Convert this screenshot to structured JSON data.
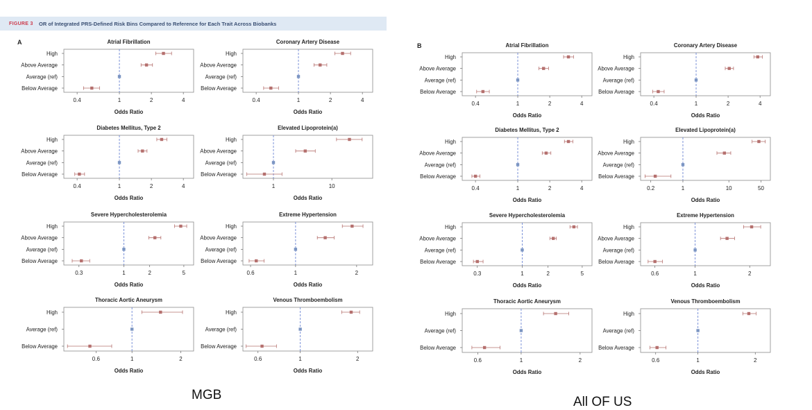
{
  "figure": {
    "label": "FIGURE 3",
    "title": "OR of Integrated PRS-Defined Risk Bins Compared to Reference for Each Trait Across Biobanks",
    "accent_color": "#cc3b4c",
    "banner_color": "#dfe9f4"
  },
  "panels": {
    "A": {
      "letter": "A",
      "cohort": "MGB"
    },
    "B": {
      "letter": "B",
      "cohort": "All OF US"
    }
  },
  "style": {
    "point_color": "#b5706e",
    "ref_point_color": "#7b95c2",
    "ref_line_color": "#6d86d4"
  },
  "chart_data": [
    {
      "id": "A1",
      "panel": "A",
      "type": "scatter",
      "title": "Atrial Fibrillation",
      "xlabel": "Odds Ratio",
      "xscale": "log",
      "xlim": [
        0.3,
        5
      ],
      "xticks": [
        0.4,
        1,
        2,
        4
      ],
      "xticklabels": [
        "0.4",
        "1",
        "2",
        "4"
      ],
      "categories": [
        "High",
        "Above Average",
        "Average (ref)",
        "Below Average"
      ],
      "values": [
        2.6,
        1.8,
        1.0,
        0.55
      ],
      "ci_low": [
        2.2,
        1.6,
        1.0,
        0.46
      ],
      "ci_high": [
        3.1,
        2.05,
        1.0,
        0.65
      ]
    },
    {
      "id": "A2",
      "panel": "A",
      "type": "scatter",
      "title": "Coronary Artery Disease",
      "xlabel": "Odds Ratio",
      "xscale": "log",
      "xlim": [
        0.3,
        5
      ],
      "xticks": [
        0.4,
        1,
        2,
        4
      ],
      "xticklabels": [
        "0.4",
        "1",
        "2",
        "4"
      ],
      "categories": [
        "High",
        "Above Average",
        "Average (ref)",
        "Below Average"
      ],
      "values": [
        2.6,
        1.6,
        1.0,
        0.55
      ],
      "ci_low": [
        2.2,
        1.4,
        1.0,
        0.47
      ],
      "ci_high": [
        3.1,
        1.85,
        1.0,
        0.65
      ]
    },
    {
      "id": "A3",
      "panel": "A",
      "type": "scatter",
      "title": "Diabetes Mellitus, Type 2",
      "xlabel": "Odds Ratio",
      "xscale": "log",
      "xlim": [
        0.3,
        5
      ],
      "xticks": [
        0.4,
        1,
        2,
        4
      ],
      "xticklabels": [
        "0.4",
        "1",
        "2",
        "4"
      ],
      "categories": [
        "High",
        "Above Average",
        "Average (ref)",
        "Below Average"
      ],
      "values": [
        2.5,
        1.65,
        1.0,
        0.42
      ],
      "ci_low": [
        2.25,
        1.5,
        1.0,
        0.38
      ],
      "ci_high": [
        2.8,
        1.82,
        1.0,
        0.47
      ]
    },
    {
      "id": "A4",
      "panel": "A",
      "type": "scatter",
      "title": "Elevated Lipoprotein(a)",
      "xlabel": "Odds Ratio",
      "xscale": "log",
      "xlim": [
        0.3,
        50
      ],
      "xticks": [
        1,
        10
      ],
      "xticklabels": [
        "1",
        "10"
      ],
      "categories": [
        "High",
        "Above Average",
        "Average (ref)",
        "Below Average"
      ],
      "values": [
        20,
        3.5,
        1.0,
        0.7
      ],
      "ci_low": [
        12,
        2.4,
        1.0,
        0.35
      ],
      "ci_high": [
        33,
        5.2,
        1.0,
        1.4
      ]
    },
    {
      "id": "A5",
      "panel": "A",
      "type": "scatter",
      "title": "Severe Hypercholesterolemia",
      "xlabel": "Odds Ratio",
      "xscale": "log",
      "xlim": [
        0.2,
        6.5
      ],
      "xticks": [
        0.3,
        1,
        2,
        5
      ],
      "xticklabels": [
        "0.3",
        "1",
        "2",
        "5"
      ],
      "categories": [
        "High",
        "Above Average",
        "Average (ref)",
        "Below Average"
      ],
      "values": [
        4.6,
        2.3,
        1.0,
        0.32
      ],
      "ci_low": [
        3.9,
        1.95,
        1.0,
        0.25
      ],
      "ci_high": [
        5.4,
        2.7,
        1.0,
        0.4
      ]
    },
    {
      "id": "A6",
      "panel": "A",
      "type": "scatter",
      "title": "Extreme Hypertension",
      "xlabel": "Odds Ratio",
      "xscale": "log",
      "xlim": [
        0.55,
        2.4
      ],
      "xticks": [
        0.6,
        1,
        2
      ],
      "xticklabels": [
        "0.6",
        "1",
        "2"
      ],
      "categories": [
        "High",
        "Above Average",
        "Average (ref)",
        "Below Average"
      ],
      "values": [
        1.9,
        1.4,
        1.0,
        0.64
      ],
      "ci_low": [
        1.7,
        1.28,
        1.0,
        0.59
      ],
      "ci_high": [
        2.15,
        1.55,
        1.0,
        0.7
      ]
    },
    {
      "id": "A7",
      "panel": "A",
      "type": "scatter",
      "title": "Thoracic Aortic Aneurysm",
      "xlabel": "Odds Ratio",
      "xscale": "log",
      "xlim": [
        0.38,
        2.4
      ],
      "xticks": [
        0.6,
        1,
        2
      ],
      "xticklabels": [
        "0.6",
        "1",
        "2"
      ],
      "categories": [
        "High",
        "Average (ref)",
        "Below Average"
      ],
      "values": [
        1.5,
        1.0,
        0.55
      ],
      "ci_low": [
        1.15,
        1.0,
        0.4
      ],
      "ci_high": [
        2.05,
        1.0,
        0.75
      ]
    },
    {
      "id": "A8",
      "panel": "A",
      "type": "scatter",
      "title": "Venous Thromboembolism",
      "xlabel": "Odds Ratio",
      "xscale": "log",
      "xlim": [
        0.5,
        2.4
      ],
      "xticks": [
        0.6,
        1,
        2
      ],
      "xticklabels": [
        "0.6",
        "1",
        "2"
      ],
      "categories": [
        "High",
        "Average (ref)",
        "Below Average"
      ],
      "values": [
        1.85,
        1.0,
        0.63
      ],
      "ci_low": [
        1.65,
        1.0,
        0.52
      ],
      "ci_high": [
        2.05,
        1.0,
        0.75
      ]
    },
    {
      "id": "B1",
      "panel": "B",
      "type": "scatter",
      "title": "Atrial Fibrillation",
      "xlabel": "Odds Ratio",
      "xscale": "log",
      "xlim": [
        0.3,
        5
      ],
      "xticks": [
        0.4,
        1,
        2,
        4
      ],
      "xticklabels": [
        "0.4",
        "1",
        "2",
        "4"
      ],
      "categories": [
        "High",
        "Above Average",
        "Average (ref)",
        "Below Average"
      ],
      "values": [
        3.0,
        1.75,
        1.0,
        0.47
      ],
      "ci_low": [
        2.7,
        1.58,
        1.0,
        0.41
      ],
      "ci_high": [
        3.35,
        1.95,
        1.0,
        0.54
      ]
    },
    {
      "id": "B2",
      "panel": "B",
      "type": "scatter",
      "title": "Coronary Artery Disease",
      "xlabel": "Odds Ratio",
      "xscale": "log",
      "xlim": [
        0.3,
        5
      ],
      "xticks": [
        0.4,
        1,
        2,
        4
      ],
      "xticklabels": [
        "0.4",
        "1",
        "2",
        "4"
      ],
      "categories": [
        "High",
        "Above Average",
        "Average (ref)",
        "Below Average"
      ],
      "values": [
        3.8,
        2.05,
        1.0,
        0.44
      ],
      "ci_low": [
        3.5,
        1.88,
        1.0,
        0.39
      ],
      "ci_high": [
        4.2,
        2.25,
        1.0,
        0.5
      ]
    },
    {
      "id": "B3",
      "panel": "B",
      "type": "scatter",
      "title": "Diabetes Mellitus, Type 2",
      "xlabel": "Odds Ratio",
      "xscale": "log",
      "xlim": [
        0.3,
        5
      ],
      "xticks": [
        0.4,
        1,
        2,
        4
      ],
      "xticklabels": [
        "0.4",
        "1",
        "2",
        "4"
      ],
      "categories": [
        "High",
        "Above Average",
        "Average (ref)",
        "Below Average"
      ],
      "values": [
        3.0,
        1.85,
        1.0,
        0.4
      ],
      "ci_low": [
        2.75,
        1.7,
        1.0,
        0.37
      ],
      "ci_high": [
        3.3,
        2.05,
        1.0,
        0.44
      ]
    },
    {
      "id": "B4",
      "panel": "B",
      "type": "scatter",
      "title": "Elevated Lipoprotein(a)",
      "xlabel": "Odds Ratio",
      "xscale": "log",
      "xlim": [
        0.12,
        80
      ],
      "xticks": [
        0.2,
        1,
        10,
        50
      ],
      "xticklabels": [
        "0.2",
        "1",
        "10",
        "50"
      ],
      "categories": [
        "High",
        "Above Average",
        "Average (ref)",
        "Below Average"
      ],
      "values": [
        45,
        8,
        1.0,
        0.25
      ],
      "ci_low": [
        32,
        5.5,
        1.0,
        0.15
      ],
      "ci_high": [
        62,
        11,
        1.0,
        0.55
      ]
    },
    {
      "id": "B5",
      "panel": "B",
      "type": "scatter",
      "title": "Severe Hypercholesterolemia",
      "xlabel": "Odds Ratio",
      "xscale": "log",
      "xlim": [
        0.2,
        6.5
      ],
      "xticks": [
        0.3,
        1,
        2,
        5
      ],
      "xticklabels": [
        "0.3",
        "1",
        "2",
        "5"
      ],
      "categories": [
        "High",
        "Above Average",
        "Average (ref)",
        "Below Average"
      ],
      "values": [
        4.0,
        2.3,
        1.0,
        0.3
      ],
      "ci_low": [
        3.6,
        2.1,
        1.0,
        0.27
      ],
      "ci_high": [
        4.4,
        2.5,
        1.0,
        0.35
      ]
    },
    {
      "id": "B6",
      "panel": "B",
      "type": "scatter",
      "title": "Extreme Hypertension",
      "xlabel": "Odds Ratio",
      "xscale": "log",
      "xlim": [
        0.5,
        2.6
      ],
      "xticks": [
        0.6,
        1,
        2
      ],
      "xticklabels": [
        "0.6",
        "1",
        "2"
      ],
      "categories": [
        "High",
        "Above Average",
        "Average (ref)",
        "Below Average"
      ],
      "values": [
        2.05,
        1.5,
        1.0,
        0.6
      ],
      "ci_low": [
        1.85,
        1.38,
        1.0,
        0.55
      ],
      "ci_high": [
        2.3,
        1.65,
        1.0,
        0.66
      ]
    },
    {
      "id": "B7",
      "panel": "B",
      "type": "scatter",
      "title": "Thoracic Aortic Aneurysm",
      "xlabel": "Odds Ratio",
      "xscale": "log",
      "xlim": [
        0.5,
        2.3
      ],
      "xticks": [
        0.6,
        1,
        2
      ],
      "xticklabels": [
        "0.6",
        "1",
        "2"
      ],
      "categories": [
        "High",
        "Average (ref)",
        "Below Average"
      ],
      "values": [
        1.5,
        1.0,
        0.65
      ],
      "ci_low": [
        1.3,
        1.0,
        0.56
      ],
      "ci_high": [
        1.75,
        1.0,
        0.78
      ]
    },
    {
      "id": "B8",
      "panel": "B",
      "type": "scatter",
      "title": "Venous Thromboembolism",
      "xlabel": "Odds Ratio",
      "xscale": "log",
      "xlim": [
        0.5,
        2.4
      ],
      "xticks": [
        0.6,
        1,
        2
      ],
      "xticklabels": [
        "0.6",
        "1",
        "2"
      ],
      "categories": [
        "High",
        "Average (ref)",
        "Below Average"
      ],
      "values": [
        1.85,
        1.0,
        0.61
      ],
      "ci_low": [
        1.72,
        1.0,
        0.56
      ],
      "ci_high": [
        2.02,
        1.0,
        0.68
      ]
    }
  ]
}
